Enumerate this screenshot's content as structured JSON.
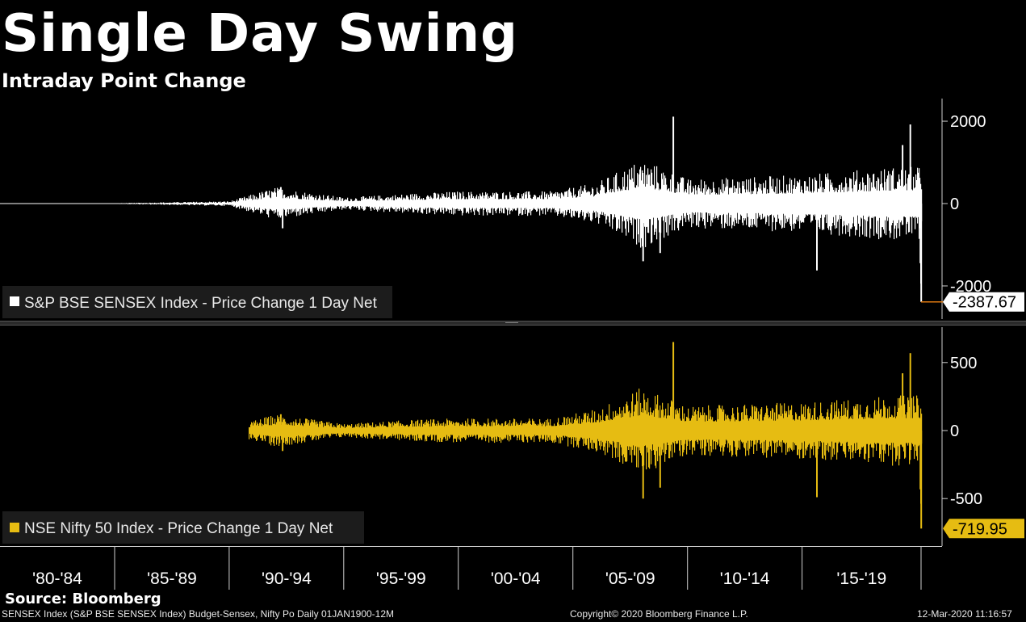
{
  "header": {
    "title": "Single Day Swing",
    "subtitle": "Intraday Point Change"
  },
  "footer": {
    "source": "Source: Bloomberg",
    "terminal_info": "SENSEX Index (S&P BSE SENSEX Index) Budget-Sensex, Nifty Po  Daily 01JAN1900-12M",
    "copyright": "Copyright© 2020 Bloomberg Finance L.P.",
    "timestamp": "12-Mar-2020 11:16:57"
  },
  "colors": {
    "background": "#000000",
    "sensex": "#ffffff",
    "nifty": "#e6bc12",
    "last_marker_line": "#e07a10"
  },
  "chart_data": [
    {
      "type": "bar",
      "legend": "S&P BSE SENSEX Index - Price Change 1 Day Net",
      "series_color": "#ffffff",
      "ylim": [
        -2550,
        2550
      ],
      "yticks": [
        2000,
        0,
        -2000
      ],
      "ytick_labels": [
        "2000",
        "0",
        "-2000"
      ],
      "last_value": -2387.67,
      "last_value_label": "-2387.67",
      "x_period_labels": [
        "'80-'84",
        "'85-'89",
        "'90-'94",
        "'95-'99",
        "'00-'04",
        "'05-'09",
        "'10-'14",
        "'15-'19"
      ],
      "approx_amplitude_by_year": [
        {
          "year": 1980,
          "max_abs": 5
        },
        {
          "year": 1985,
          "max_abs": 10
        },
        {
          "year": 1990,
          "max_abs": 60
        },
        {
          "year": 1992,
          "max_abs": 400
        },
        {
          "year": 1995,
          "max_abs": 150
        },
        {
          "year": 1998,
          "max_abs": 250
        },
        {
          "year": 2000,
          "max_abs": 300
        },
        {
          "year": 2004,
          "max_abs": 300
        },
        {
          "year": 2006,
          "max_abs": 500
        },
        {
          "year": 2008,
          "max_abs": 1100
        },
        {
          "year": 2010,
          "max_abs": 600
        },
        {
          "year": 2015,
          "max_abs": 700
        },
        {
          "year": 2019,
          "max_abs": 900
        }
      ],
      "spikes": [
        {
          "date": "1992-04-01",
          "value": 400
        },
        {
          "date": "1992-04-29",
          "value": -600
        },
        {
          "date": "2008-01-22",
          "value": -1400
        },
        {
          "date": "2008-10-20",
          "value": -1200
        },
        {
          "date": "2009-05-18",
          "value": 2110
        },
        {
          "date": "2015-08-24",
          "value": -1624
        },
        {
          "date": "2019-05-20",
          "value": 1420
        },
        {
          "date": "2019-09-20",
          "value": 1921
        },
        {
          "date": "2020-02-28",
          "value": -1448
        },
        {
          "date": "2020-03-09",
          "value": -1941
        },
        {
          "date": "2020-03-12",
          "value": -2387.67
        }
      ]
    },
    {
      "type": "bar",
      "legend": "NSE Nifty 50 Index - Price Change 1 Day Net",
      "series_color": "#e6bc12",
      "ylim": [
        -760,
        760
      ],
      "yticks": [
        500,
        0,
        -500
      ],
      "ytick_labels": [
        "500",
        "0",
        "-500"
      ],
      "last_value": -719.95,
      "last_value_label": "-719.95",
      "approx_amplitude_by_year": [
        {
          "year": 1990,
          "max_abs": 25
        },
        {
          "year": 1992,
          "max_abs": 120
        },
        {
          "year": 1995,
          "max_abs": 50
        },
        {
          "year": 1998,
          "max_abs": 80
        },
        {
          "year": 2000,
          "max_abs": 90
        },
        {
          "year": 2004,
          "max_abs": 90
        },
        {
          "year": 2006,
          "max_abs": 160
        },
        {
          "year": 2008,
          "max_abs": 320
        },
        {
          "year": 2010,
          "max_abs": 180
        },
        {
          "year": 2015,
          "max_abs": 210
        },
        {
          "year": 2019,
          "max_abs": 260
        }
      ],
      "spikes": [
        {
          "date": "1992-04-01",
          "value": 120
        },
        {
          "date": "1992-04-29",
          "value": -150
        },
        {
          "date": "2008-01-22",
          "value": -500
        },
        {
          "date": "2008-10-20",
          "value": -420
        },
        {
          "date": "2009-05-18",
          "value": 651
        },
        {
          "date": "2015-08-24",
          "value": -490
        },
        {
          "date": "2019-05-20",
          "value": 421
        },
        {
          "date": "2019-09-20",
          "value": 569
        },
        {
          "date": "2020-02-28",
          "value": -432
        },
        {
          "date": "2020-03-09",
          "value": -538
        },
        {
          "date": "2020-03-12",
          "value": -719.95
        }
      ]
    }
  ]
}
